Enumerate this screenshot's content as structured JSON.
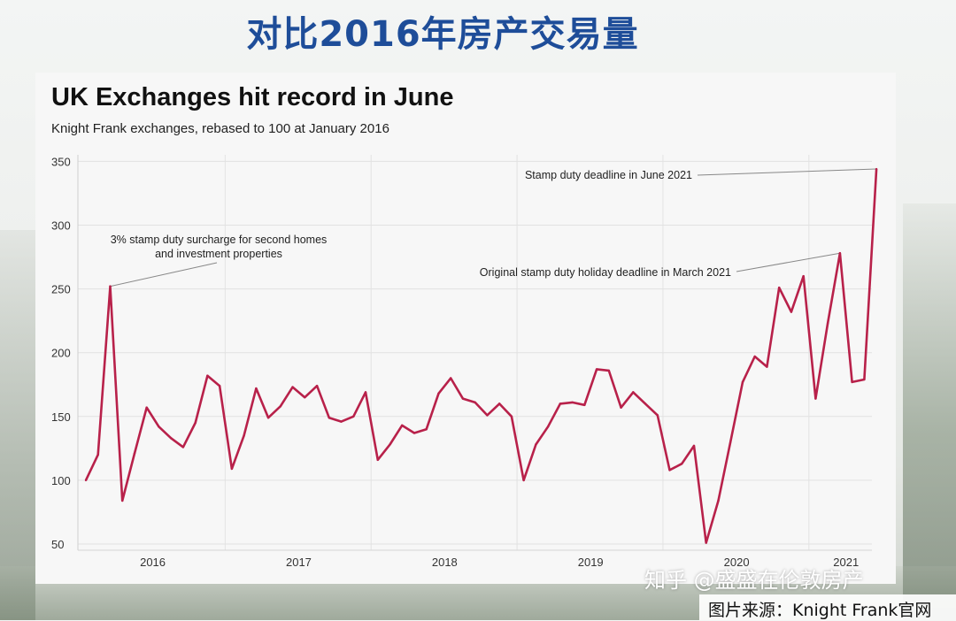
{
  "slide_title": "对比2016年房产交易量",
  "watermark": "知乎 @盛盛在伦敦房产",
  "source": "图片来源：Knight Frank官网",
  "colors": {
    "title": "#1e4d99",
    "line": "#b8214a",
    "grid": "#e2e2e2"
  },
  "chart_data": {
    "type": "line",
    "title": "UK Exchanges hit record in June",
    "subtitle": "Knight Frank exchanges, rebased to 100 at January 2016",
    "xlabel": "",
    "ylabel": "",
    "ylim": [
      45,
      352
    ],
    "yticks": [
      50,
      100,
      150,
      200,
      250,
      300,
      350
    ],
    "year_labels": [
      "2016",
      "2017",
      "2018",
      "2019",
      "2020",
      "2021"
    ],
    "series": [
      {
        "name": "",
        "values": [
          100,
          120,
          252,
          84,
          121,
          157,
          142,
          133,
          126,
          145,
          182,
          174,
          109,
          135,
          172,
          149,
          158,
          173,
          165,
          174,
          149,
          146,
          150,
          169,
          116,
          128,
          143,
          137,
          140,
          168,
          180,
          164,
          161,
          151,
          160,
          150,
          100,
          128,
          142,
          160,
          161,
          159,
          187,
          186,
          157,
          169,
          160,
          151,
          108,
          113,
          127,
          51,
          84,
          130,
          177,
          197,
          189,
          251,
          232,
          260,
          164,
          223,
          278,
          177,
          179,
          344
        ]
      }
    ],
    "annotations": [
      {
        "text": "Stamp duty deadline in June 2021"
      },
      {
        "text_lines": [
          "3% stamp duty surcharge for second homes",
          "and investment properties"
        ]
      },
      {
        "text": "Original stamp duty holiday deadline in March 2021"
      }
    ],
    "grid": true,
    "legend": "none"
  }
}
